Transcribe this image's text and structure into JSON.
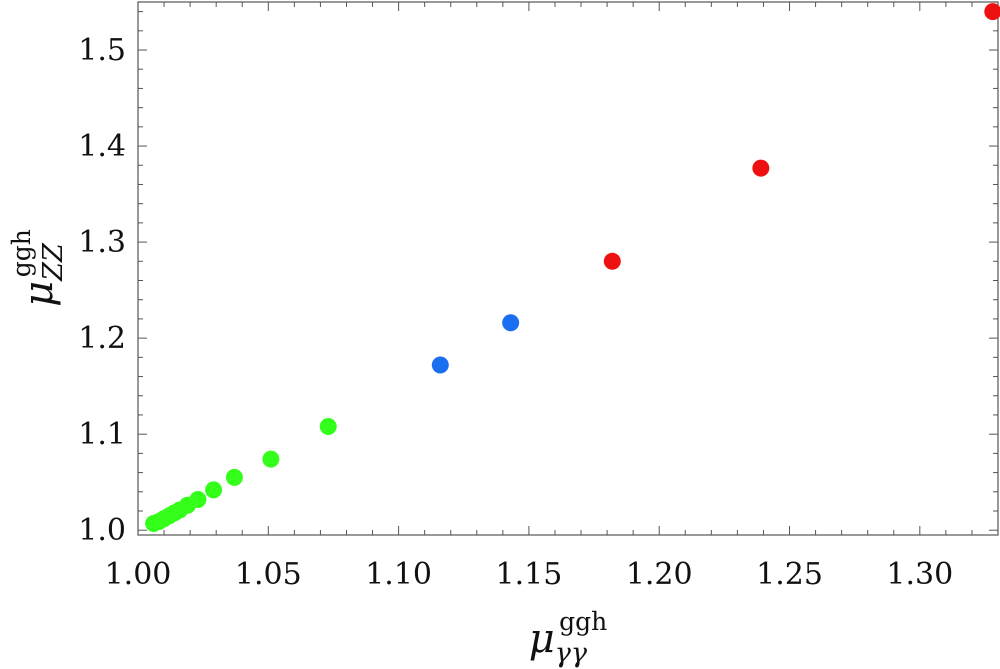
{
  "chart_data": {
    "type": "scatter",
    "xlabel": {
      "symbol": "μ",
      "sup": "ggh",
      "sub": "γγ"
    },
    "ylabel": {
      "symbol": "μ",
      "sup": "ggh",
      "sub": "ZZ"
    },
    "xlim": [
      1.0,
      1.33
    ],
    "ylim": [
      0.995,
      1.55
    ],
    "xticks": [
      1.0,
      1.05,
      1.1,
      1.15,
      1.2,
      1.25,
      1.3
    ],
    "xtick_labels": [
      "1.00",
      "1.05",
      "1.10",
      "1.15",
      "1.20",
      "1.25",
      "1.30"
    ],
    "yticks": [
      1.0,
      1.1,
      1.2,
      1.3,
      1.4,
      1.5
    ],
    "ytick_labels": [
      "1.0",
      "1.1",
      "1.2",
      "1.3",
      "1.4",
      "1.5"
    ],
    "grid": false,
    "series": [
      {
        "color": "#33ff1a",
        "points": [
          [
            1.006,
            1.007
          ],
          [
            1.008,
            1.009
          ],
          [
            1.01,
            1.012
          ],
          [
            1.012,
            1.015
          ],
          [
            1.014,
            1.018
          ],
          [
            1.016,
            1.021
          ],
          [
            1.019,
            1.026
          ],
          [
            1.023,
            1.032
          ],
          [
            1.029,
            1.042
          ],
          [
            1.037,
            1.055
          ],
          [
            1.051,
            1.074
          ],
          [
            1.073,
            1.108
          ]
        ]
      },
      {
        "color": "#1a6ff0",
        "points": [
          [
            1.116,
            1.172
          ],
          [
            1.143,
            1.216
          ]
        ]
      },
      {
        "color": "#ee1111",
        "points": [
          [
            1.182,
            1.28
          ],
          [
            1.239,
            1.377
          ],
          [
            1.328,
            1.54
          ]
        ]
      }
    ]
  }
}
